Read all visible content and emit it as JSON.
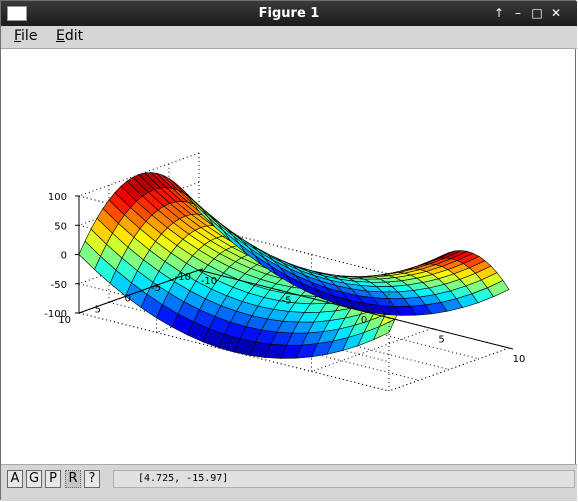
{
  "window": {
    "title": "Figure 1",
    "controls": {
      "pin": "↑",
      "minimize": "–",
      "maximize": "□",
      "close": "✕"
    }
  },
  "menu": {
    "file": "File",
    "edit": "Edit"
  },
  "toolbar": {
    "buttons": [
      "A",
      "G",
      "P",
      "R",
      "?"
    ],
    "active": "R"
  },
  "status": {
    "coordinates": "[4.725, -15.97]"
  },
  "chart_data": {
    "type": "surface",
    "function": "z = x^2 - y^2",
    "colormap": "jet",
    "x": {
      "range": [
        -10,
        10
      ],
      "ticks": [
        "-10",
        "-5",
        "0",
        "5",
        "10"
      ]
    },
    "y": {
      "range": [
        -10,
        10
      ],
      "ticks": [
        "-10",
        "-5",
        "0",
        "5",
        "10"
      ]
    },
    "z": {
      "range": [
        -100,
        100
      ],
      "ticks": [
        "-100",
        "-50",
        "0",
        "50",
        "100"
      ]
    },
    "grid_points": 21,
    "grid": true,
    "box": true,
    "colors": {
      "axis": "#000000",
      "grid": "#000000",
      "mesh": "#000000"
    }
  }
}
